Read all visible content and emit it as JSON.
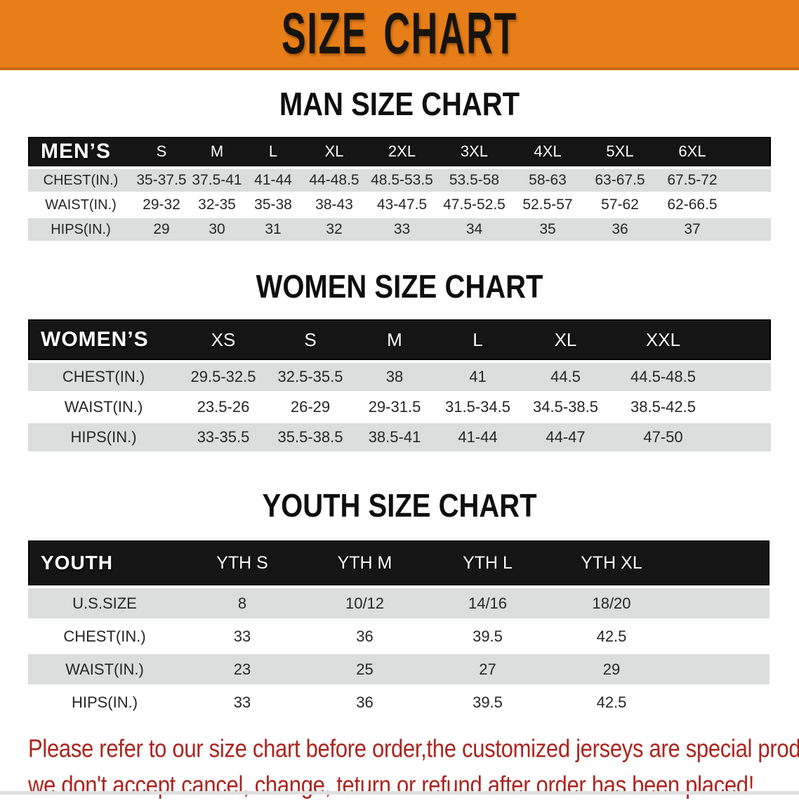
{
  "colors": {
    "banner_bg": "#E87E17",
    "banner_border": "#C96B10",
    "header_bg": "#151515",
    "row_gray": "#DCDDDD",
    "disclaimer_red": "#AD241F"
  },
  "banner": {
    "title": "SIZE CHART"
  },
  "men": {
    "heading": "MAN SIZE CHART",
    "corner": "MEN’S",
    "sizes": [
      "S",
      "M",
      "L",
      "XL",
      "2XL",
      "3XL",
      "4XL",
      "5XL",
      "6XL"
    ],
    "rows": [
      {
        "label": "CHEST(IN.)",
        "values": [
          "35-37.5",
          "37.5-41",
          "41-44",
          "44-48.5",
          "48.5-53.5",
          "53.5-58",
          "58-63",
          "63-67.5",
          "67.5-72"
        ]
      },
      {
        "label": "WAIST(IN.)",
        "values": [
          "29-32",
          "32-35",
          "35-38",
          "38-43",
          "43-47.5",
          "47.5-52.5",
          "52.5-57",
          "57-62",
          "62-66.5"
        ]
      },
      {
        "label": "HIPS(IN.)",
        "values": [
          "29",
          "30",
          "31",
          "32",
          "33",
          "34",
          "35",
          "36",
          "37"
        ]
      }
    ]
  },
  "women": {
    "heading": "WOMEN SIZE CHART",
    "corner": "WOMEN’S",
    "sizes": [
      "XS",
      "S",
      "M",
      "L",
      "XL",
      "XXL"
    ],
    "rows": [
      {
        "label": "CHEST(IN.)",
        "values": [
          "29.5-32.5",
          "32.5-35.5",
          "38",
          "41",
          "44.5",
          "44.5-48.5"
        ]
      },
      {
        "label": "WAIST(IN.)",
        "values": [
          "23.5-26",
          "26-29",
          "29-31.5",
          "31.5-34.5",
          "34.5-38.5",
          "38.5-42.5"
        ]
      },
      {
        "label": "HIPS(IN.)",
        "values": [
          "33-35.5",
          "35.5-38.5",
          "38.5-41",
          "41-44",
          "44-47",
          "47-50"
        ]
      }
    ]
  },
  "youth": {
    "heading": "YOUTH SIZE CHART",
    "corner": "YOUTH",
    "sizes": [
      "YTH S",
      "YTH M",
      "YTH L",
      "YTH XL"
    ],
    "rows": [
      {
        "label": "U.S.SIZE",
        "values": [
          "8",
          "10/12",
          "14/16",
          "18/20"
        ]
      },
      {
        "label": "CHEST(IN.)",
        "values": [
          "33",
          "36",
          "39.5",
          "42.5"
        ]
      },
      {
        "label": "WAIST(IN.)",
        "values": [
          "23",
          "25",
          "27",
          "29"
        ]
      },
      {
        "label": "HIPS(IN.)",
        "values": [
          "33",
          "36",
          "39.5",
          "42.5"
        ]
      }
    ]
  },
  "disclaimer": {
    "line1": "Please refer to our size chart before order,the customized jerseys are special products,",
    "line2": "we don't accept cancel, change, teturn or refund after order has been placed!"
  }
}
